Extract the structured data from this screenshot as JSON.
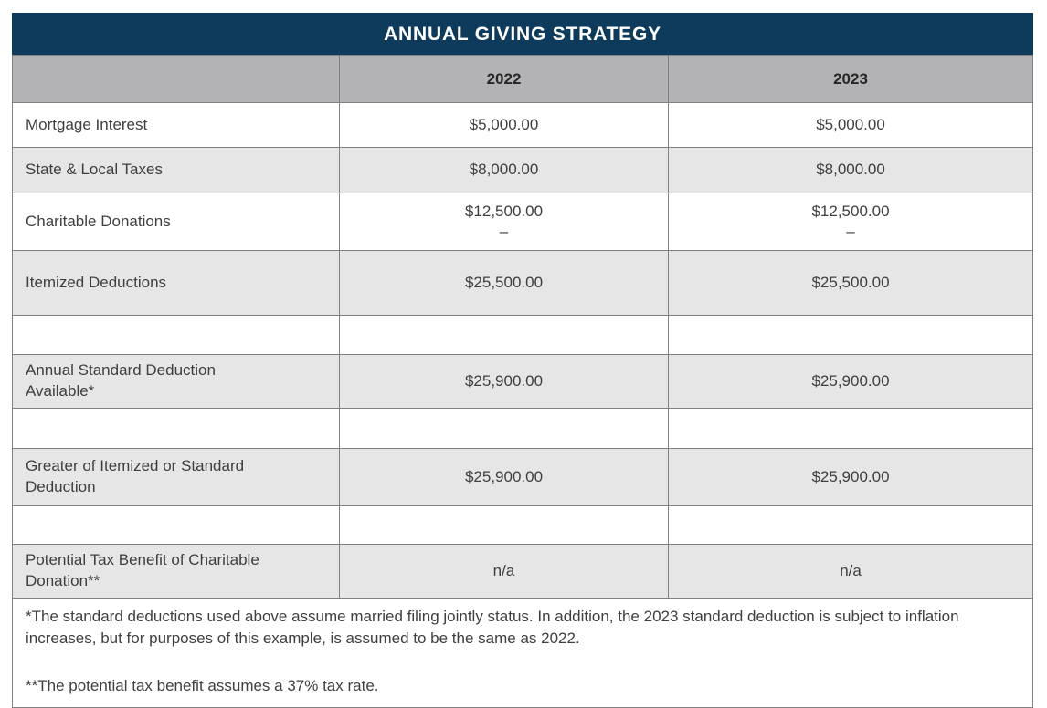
{
  "title": "ANNUAL GIVING STRATEGY",
  "table": {
    "columns": [
      "",
      "2022",
      "2023"
    ],
    "rows": [
      {
        "label": "Mortgage Interest",
        "y2022": "$5,000.00",
        "y2023": "$5,000.00",
        "sub": ""
      },
      {
        "label": "State & Local Taxes",
        "y2022": "$8,000.00",
        "y2023": "$8,000.00",
        "sub": ""
      },
      {
        "label": "Charitable Donations",
        "y2022": "$12,500.00",
        "y2023": "$12,500.00",
        "sub": "–"
      },
      {
        "label": "Itemized Deductions",
        "y2022": "$25,500.00",
        "y2023": "$25,500.00",
        "sub": ""
      },
      {
        "label": "",
        "y2022": "",
        "y2023": "",
        "sub": ""
      },
      {
        "label": "Annual Standard Deduction\nAvailable*",
        "y2022": "$25,900.00",
        "y2023": "$25,900.00",
        "sub": ""
      },
      {
        "label": "",
        "y2022": "",
        "y2023": "",
        "sub": ""
      },
      {
        "label": "Greater of Itemized or Standard\nDeduction",
        "y2022": "$25,900.00",
        "y2023": "$25,900.00",
        "sub": ""
      },
      {
        "label": "",
        "y2022": "",
        "y2023": "",
        "sub": ""
      },
      {
        "label": "Potential Tax Benefit of Charitable\nDonation**",
        "y2022": "n/a",
        "y2023": "n/a",
        "sub": ""
      }
    ]
  },
  "footnotes": [
    "*The standard deductions used above assume married filing jointly status. In addition, the 2023 standard deduction is subject to inflation increases, but for purposes of this example, is assumed to be the same as 2022.",
    "**The potential tax benefit assumes a 37% tax rate."
  ],
  "colors": {
    "title_bar": "#0e3b5c",
    "title_text": "#ffffff",
    "header_row": "#b3b3b5",
    "shaded_row": "#e6e6e6",
    "border": "#808080",
    "body_text": "#3f3f3f"
  }
}
